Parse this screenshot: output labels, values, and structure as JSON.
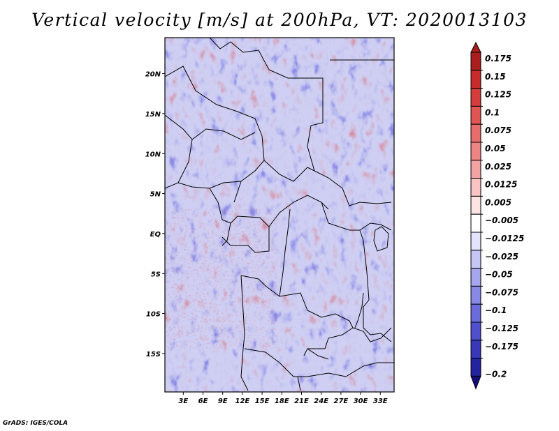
{
  "chart_data": {
    "type": "heatmap",
    "title": "Vertical velocity [m/s] at 200hPa, VT: 2020013103",
    "variable": "Vertical velocity",
    "units": "m/s",
    "level": "200hPa",
    "valid_time": "2020013103",
    "x_ticks": [
      "3E",
      "6E",
      "9E",
      "12E",
      "15E",
      "18E",
      "21E",
      "24E",
      "27E",
      "30E",
      "33E"
    ],
    "x_tick_values": [
      3,
      6,
      9,
      12,
      15,
      18,
      21,
      24,
      27,
      30,
      33
    ],
    "y_ticks": [
      "20N",
      "15N",
      "10N",
      "5N",
      "EQ",
      "5S",
      "10S",
      "15S"
    ],
    "y_tick_values": [
      20,
      15,
      10,
      5,
      0,
      -5,
      -10,
      -15
    ],
    "xlim": [
      0.2,
      35.1
    ],
    "ylim": [
      -19.8,
      24.5
    ],
    "colorbar": {
      "labels": [
        "0.175",
        "0.15",
        "0.125",
        "0.1",
        "0.075",
        "0.05",
        "0.025",
        "0.0125",
        "0.005",
        "−0.005",
        "−0.0125",
        "−0.025",
        "−0.05",
        "−0.075",
        "−0.1",
        "−0.125",
        "−0.175",
        "−0.2"
      ],
      "colors": [
        "#ab1e1e",
        "#c72b2b",
        "#d63c3c",
        "#e05454",
        "#e76c6c",
        "#ee8585",
        "#f4a3a3",
        "#f9c4c4",
        "#fce4e4",
        "#ffffff",
        "#e3e3fb",
        "#c6c6f5",
        "#a6a6ee",
        "#8888e6",
        "#6b6bdb",
        "#5050cc",
        "#3838b8",
        "#2424a0",
        "#140d7a"
      ],
      "extend": "both"
    }
  },
  "credit": "GrADS: IGES/COLA"
}
